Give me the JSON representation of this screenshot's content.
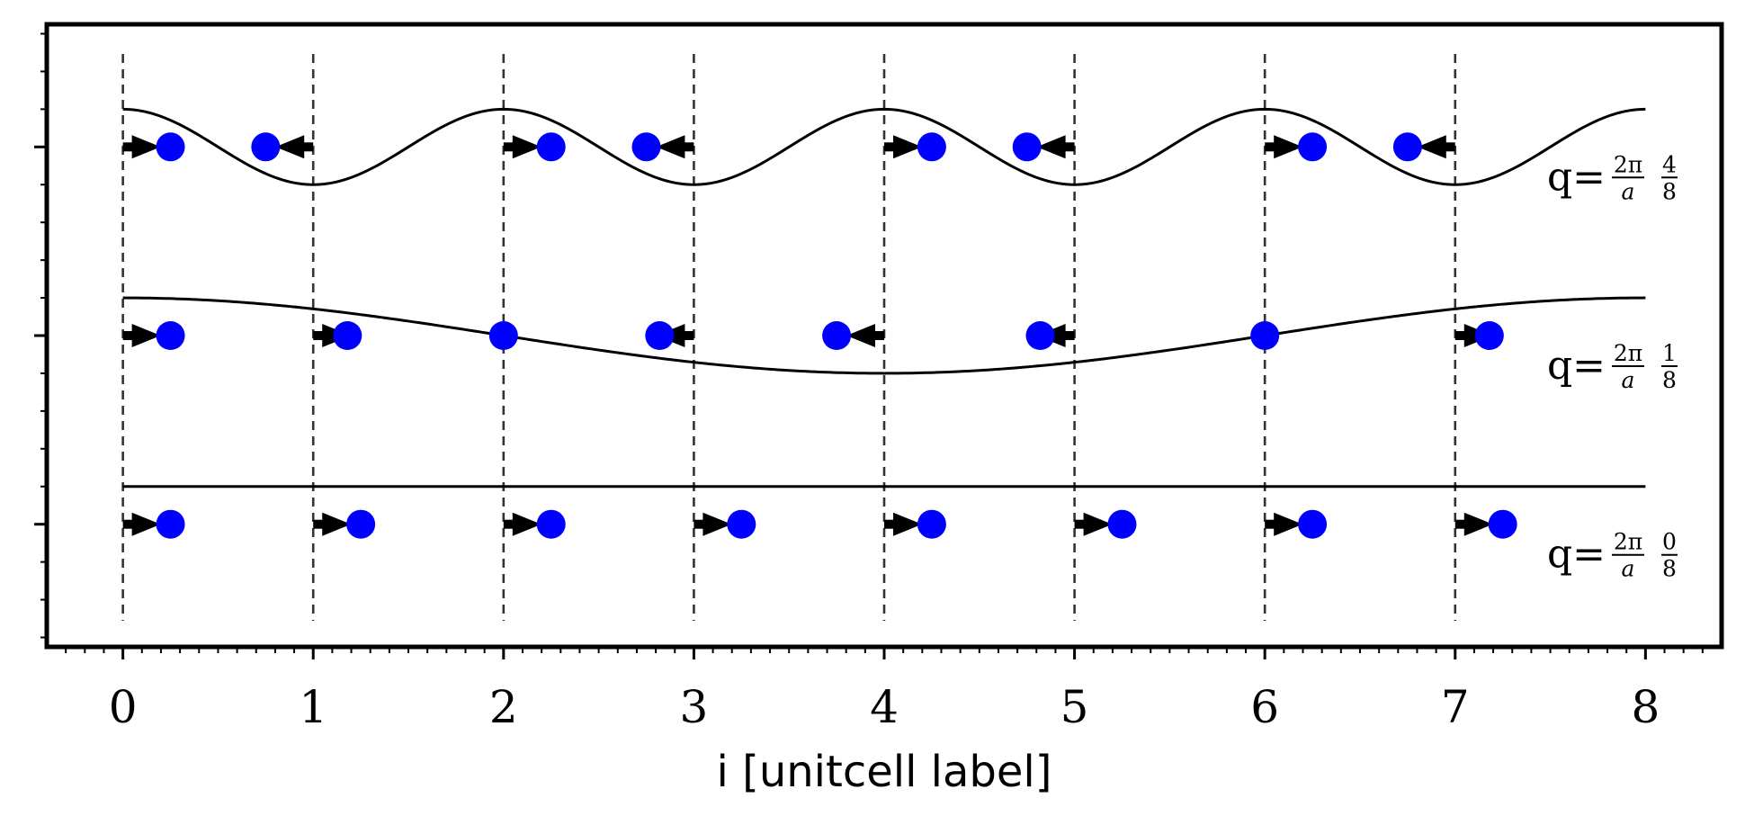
{
  "chart_data": {
    "type": "scatter",
    "title": "",
    "xlabel": "i [unitcell label]",
    "ylabel": "",
    "xlim": [
      -0.4,
      8.4
    ],
    "ylim": [
      -0.65,
      2.65
    ],
    "x_ticks": [
      "0",
      "1",
      "2",
      "3",
      "4",
      "5",
      "6",
      "7",
      "8"
    ],
    "x_tick_values": [
      0,
      1,
      2,
      3,
      4,
      5,
      6,
      7,
      8
    ],
    "y_tick_values": [
      0,
      1,
      2
    ],
    "grid": "dashed vertical lines at x = 0..7",
    "legend": "none",
    "colors": {
      "atom": "#0000ff",
      "wave": "#000000",
      "arrow": "#000000",
      "gridline": "#333333"
    },
    "series": [
      {
        "label_prefix": "q=",
        "q_numerator": "2π",
        "q_denominator": "a",
        "n_numerator": "0",
        "n_denominator": "8",
        "y": 0,
        "wave_level": 0.2,
        "wave_amplitude": 0,
        "wave_period": null,
        "sites": [
          0,
          1,
          2,
          3,
          4,
          5,
          6,
          7
        ],
        "positions": [
          0.25,
          1.25,
          2.25,
          3.25,
          4.25,
          5.25,
          6.25,
          7.25
        ],
        "arrow_direction": [
          "right",
          "right",
          "right",
          "right",
          "right",
          "right",
          "right",
          "right"
        ]
      },
      {
        "label_prefix": "q=",
        "q_numerator": "2π",
        "q_denominator": "a",
        "n_numerator": "1",
        "n_denominator": "8",
        "y": 1,
        "wave_level": 1.2,
        "wave_amplitude": 0.2,
        "wave_period": 8,
        "sites": [
          0,
          1,
          2,
          3,
          4,
          5,
          6,
          7
        ],
        "positions": [
          0.25,
          1.18,
          2.0,
          2.82,
          3.75,
          4.82,
          6.0,
          7.18
        ],
        "arrow_direction": [
          "right",
          "right",
          "none",
          "left",
          "left",
          "left",
          "none",
          "right"
        ]
      },
      {
        "label_prefix": "q=",
        "q_numerator": "2π",
        "q_denominator": "a",
        "n_numerator": "4",
        "n_denominator": "8",
        "y": 2,
        "wave_level": 2.2,
        "wave_amplitude": 0.2,
        "wave_period": 2,
        "sites": [
          0,
          1,
          2,
          3,
          4,
          5,
          6,
          7
        ],
        "positions": [
          0.25,
          0.75,
          2.25,
          2.75,
          4.25,
          4.75,
          6.25,
          6.75
        ],
        "arrow_direction": [
          "right",
          "left",
          "right",
          "left",
          "right",
          "left",
          "right",
          "left"
        ]
      }
    ]
  }
}
